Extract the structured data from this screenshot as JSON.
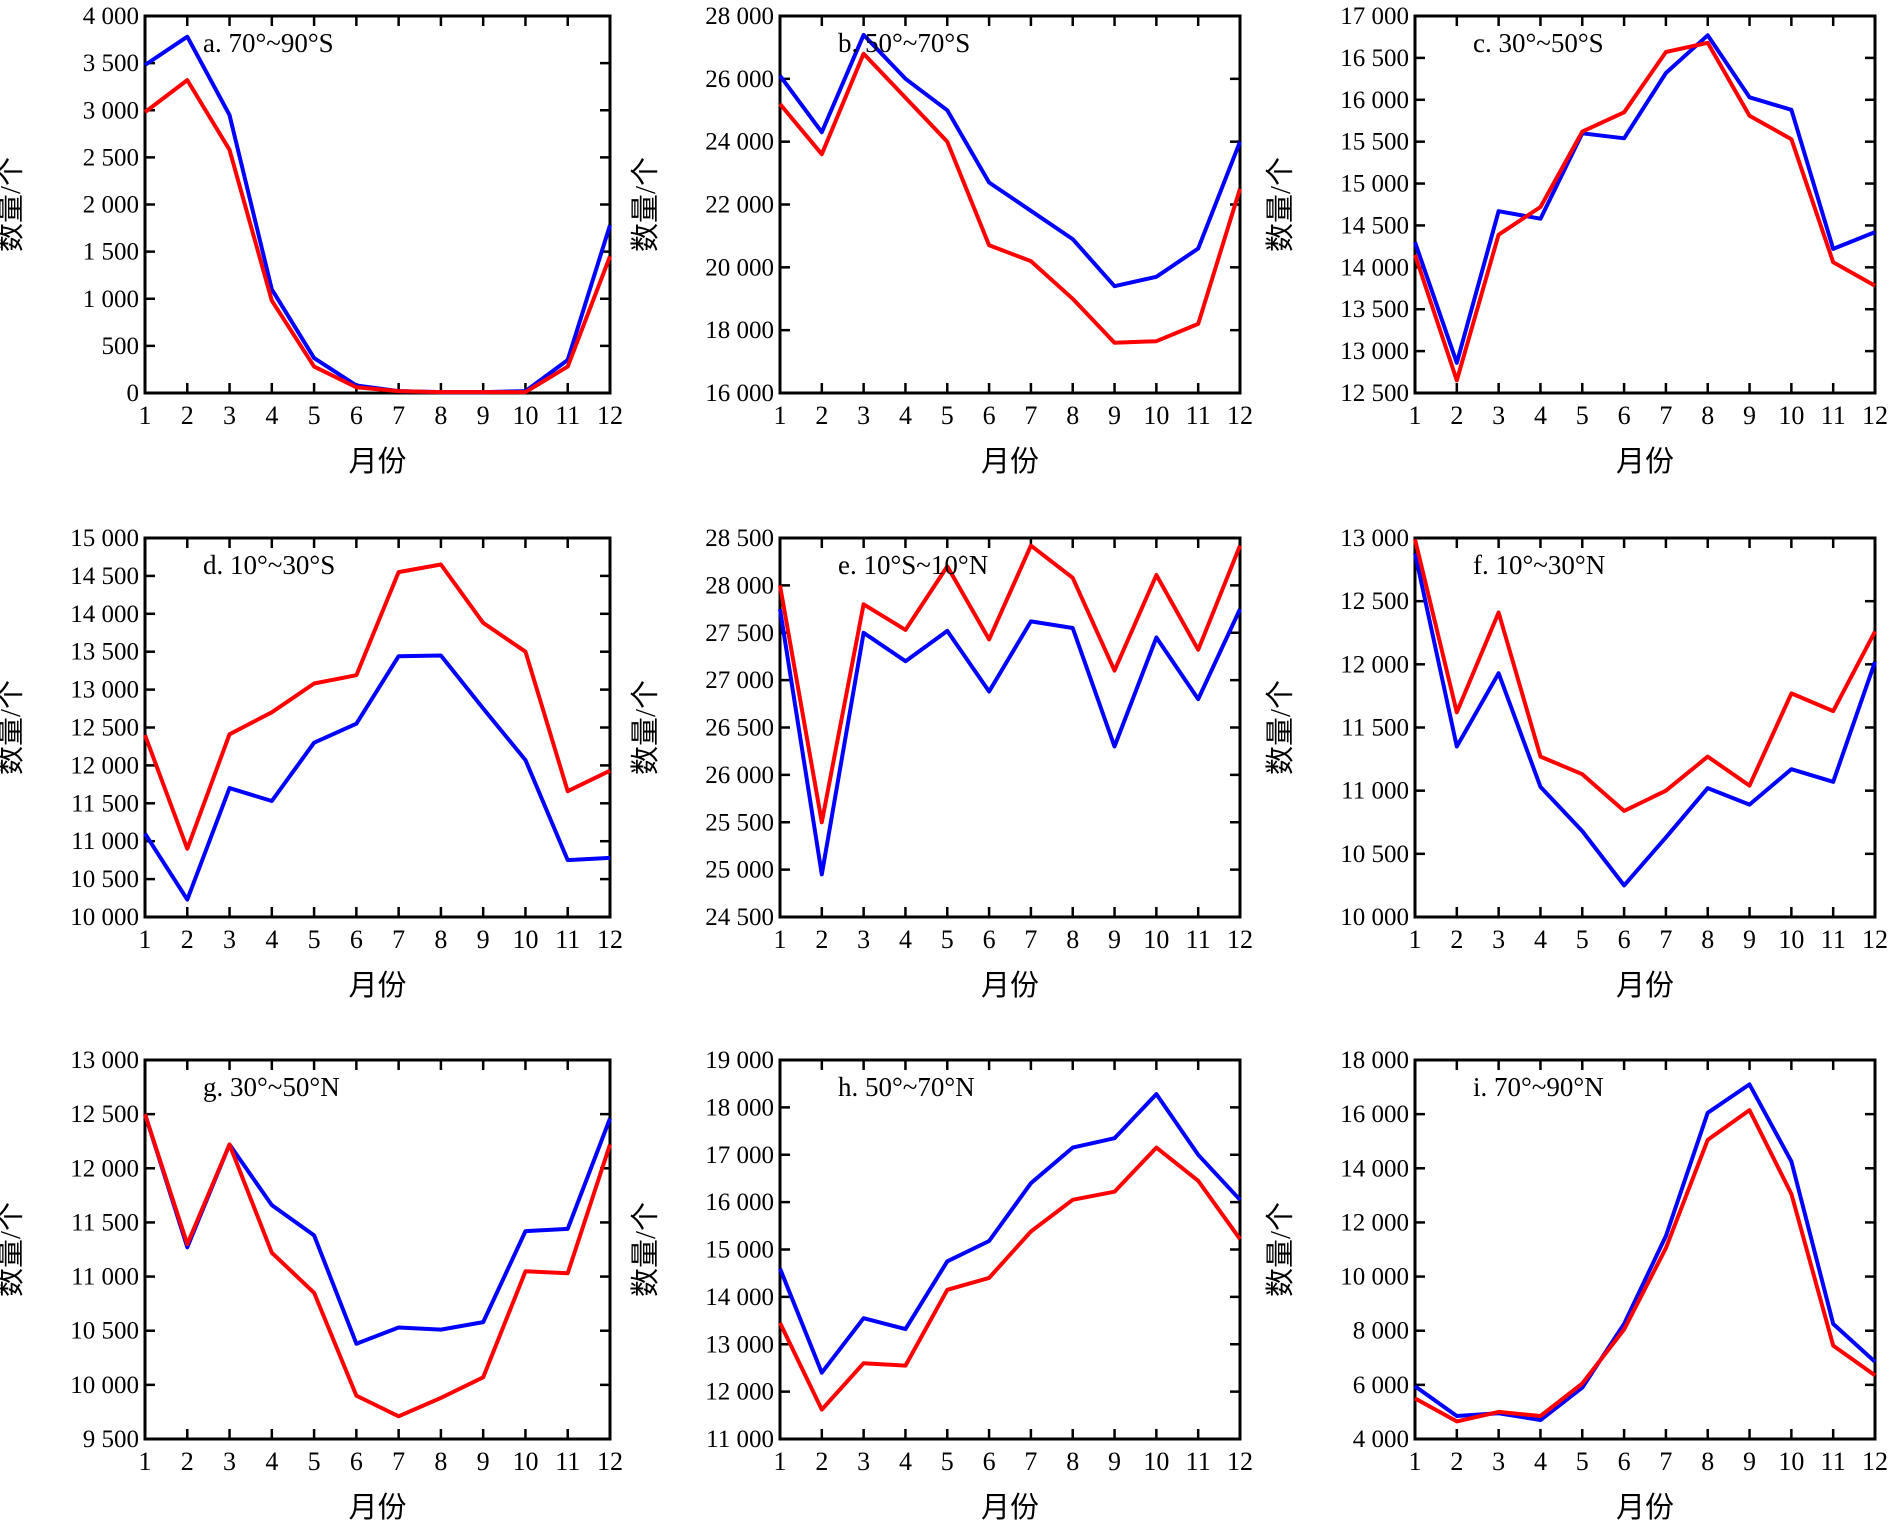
{
  "colors": {
    "series_blue": "#0000ff",
    "series_red": "#ff0000",
    "axis": "#000000"
  },
  "chart_data": [
    {
      "type": "line",
      "title": "a. 70°~90°S",
      "xlabel": "月份",
      "ylabel": "数量/个",
      "x": [
        1,
        2,
        3,
        4,
        5,
        6,
        7,
        8,
        9,
        10,
        11,
        12
      ],
      "xticks": [
        "1",
        "2",
        "3",
        "4",
        "5",
        "6",
        "7",
        "8",
        "9",
        "10",
        "11",
        "12"
      ],
      "ylim": [
        0,
        4000
      ],
      "yticks": [
        "0",
        "500",
        "1 000",
        "1 500",
        "2 000",
        "2 500",
        "3 000",
        "3 500",
        "4 000"
      ],
      "series": [
        {
          "color": "#0000ff",
          "values": [
            3480,
            3780,
            2950,
            1100,
            370,
            80,
            20,
            10,
            10,
            20,
            350,
            1780
          ]
        },
        {
          "color": "#ff0000",
          "values": [
            2980,
            3320,
            2580,
            980,
            280,
            60,
            20,
            10,
            10,
            10,
            280,
            1450
          ]
        }
      ]
    },
    {
      "type": "line",
      "title": "b. 50°~70°S",
      "xlabel": "月份",
      "ylabel": "数量/个",
      "x": [
        1,
        2,
        3,
        4,
        5,
        6,
        7,
        8,
        9,
        10,
        11,
        12
      ],
      "xticks": [
        "1",
        "2",
        "3",
        "4",
        "5",
        "6",
        "7",
        "8",
        "9",
        "10",
        "11",
        "12"
      ],
      "ylim": [
        16000,
        28000
      ],
      "yticks": [
        "16 000",
        "18 000",
        "20 000",
        "22 000",
        "24 000",
        "26 000",
        "28 000"
      ],
      "series": [
        {
          "color": "#0000ff",
          "values": [
            26100,
            24300,
            27400,
            26000,
            25000,
            22700,
            21800,
            20900,
            19400,
            19700,
            20600,
            24000
          ]
        },
        {
          "color": "#ff0000",
          "values": [
            25200,
            23600,
            26800,
            25400,
            24000,
            20700,
            20200,
            19000,
            17600,
            17650,
            18200,
            22500
          ]
        }
      ]
    },
    {
      "type": "line",
      "title": "c. 30°~50°S",
      "xlabel": "月份",
      "ylabel": "数量/个",
      "x": [
        1,
        2,
        3,
        4,
        5,
        6,
        7,
        8,
        9,
        10,
        11,
        12
      ],
      "xticks": [
        "1",
        "2",
        "3",
        "4",
        "5",
        "6",
        "7",
        "8",
        "9",
        "10",
        "11",
        "12"
      ],
      "ylim": [
        12500,
        17000
      ],
      "yticks": [
        "12 500",
        "13 000",
        "13 500",
        "14 000",
        "14 500",
        "15 000",
        "15 500",
        "16 000",
        "16 500",
        "17 000"
      ],
      "series": [
        {
          "color": "#0000ff",
          "values": [
            14300,
            12860,
            14670,
            14580,
            15600,
            15540,
            16320,
            16770,
            16030,
            15880,
            14220,
            14420
          ]
        },
        {
          "color": "#ff0000",
          "values": [
            14150,
            12650,
            14390,
            14720,
            15620,
            15850,
            16570,
            16680,
            15810,
            15530,
            14060,
            13780
          ]
        }
      ]
    },
    {
      "type": "line",
      "title": "d. 10°~30°S",
      "xlabel": "月份",
      "ylabel": "数量/个",
      "x": [
        1,
        2,
        3,
        4,
        5,
        6,
        7,
        8,
        9,
        10,
        11,
        12
      ],
      "xticks": [
        "1",
        "2",
        "3",
        "4",
        "5",
        "6",
        "7",
        "8",
        "9",
        "10",
        "11",
        "12"
      ],
      "ylim": [
        10000,
        15000
      ],
      "yticks": [
        "10 000",
        "10 500",
        "11 000",
        "11 500",
        "12 000",
        "12 500",
        "13 000",
        "13 500",
        "14 000",
        "14 500",
        "15 000"
      ],
      "series": [
        {
          "color": "#0000ff",
          "values": [
            11100,
            10230,
            11700,
            11530,
            12300,
            12550,
            13440,
            13450,
            12750,
            12070,
            10750,
            10780
          ]
        },
        {
          "color": "#ff0000",
          "values": [
            12400,
            10900,
            12410,
            12700,
            13080,
            13190,
            14550,
            14650,
            13880,
            13500,
            11660,
            11930
          ]
        }
      ]
    },
    {
      "type": "line",
      "title": "e. 10°S~10°N",
      "xlabel": "月份",
      "ylabel": "数量/个",
      "x": [
        1,
        2,
        3,
        4,
        5,
        6,
        7,
        8,
        9,
        10,
        11,
        12
      ],
      "xticks": [
        "1",
        "2",
        "3",
        "4",
        "5",
        "6",
        "7",
        "8",
        "9",
        "10",
        "11",
        "12"
      ],
      "ylim": [
        24500,
        28500
      ],
      "yticks": [
        "24 500",
        "25 000",
        "25 500",
        "26 000",
        "26 500",
        "27 000",
        "27 500",
        "28 000",
        "28 500"
      ],
      "series": [
        {
          "color": "#0000ff",
          "values": [
            27750,
            24950,
            27500,
            27200,
            27520,
            26880,
            27620,
            27550,
            26300,
            27450,
            26800,
            27750
          ]
        },
        {
          "color": "#ff0000",
          "values": [
            28000,
            25500,
            27800,
            27530,
            28200,
            27430,
            28420,
            28080,
            27100,
            28110,
            27320,
            28420
          ]
        }
      ]
    },
    {
      "type": "line",
      "title": "f. 10°~30°N",
      "xlabel": "月份",
      "ylabel": "数量/个",
      "x": [
        1,
        2,
        3,
        4,
        5,
        6,
        7,
        8,
        9,
        10,
        11,
        12
      ],
      "xticks": [
        "1",
        "2",
        "3",
        "4",
        "5",
        "6",
        "7",
        "8",
        "9",
        "10",
        "11",
        "12"
      ],
      "ylim": [
        10000,
        13000
      ],
      "yticks": [
        "10 000",
        "10 500",
        "11 000",
        "11 500",
        "12 000",
        "12 500",
        "13 000"
      ],
      "series": [
        {
          "color": "#0000ff",
          "values": [
            12880,
            11350,
            11930,
            11030,
            10680,
            10250,
            10630,
            11020,
            10890,
            11170,
            11070,
            12020
          ]
        },
        {
          "color": "#ff0000",
          "values": [
            12990,
            11620,
            12410,
            11270,
            11130,
            10840,
            11000,
            11270,
            11040,
            11770,
            11630,
            12260
          ]
        }
      ]
    },
    {
      "type": "line",
      "title": "g. 30°~50°N",
      "xlabel": "月份",
      "ylabel": "数量/个",
      "x": [
        1,
        2,
        3,
        4,
        5,
        6,
        7,
        8,
        9,
        10,
        11,
        12
      ],
      "xticks": [
        "1",
        "2",
        "3",
        "4",
        "5",
        "6",
        "7",
        "8",
        "9",
        "10",
        "11",
        "12"
      ],
      "ylim": [
        9500,
        13000
      ],
      "yticks": [
        "9 500",
        "10 000",
        "10 500",
        "11 000",
        "11 500",
        "12 000",
        "12 500",
        "13 000"
      ],
      "series": [
        {
          "color": "#0000ff",
          "values": [
            12500,
            11270,
            12220,
            11660,
            11380,
            10380,
            10530,
            10510,
            10580,
            11420,
            11440,
            12460
          ]
        },
        {
          "color": "#ff0000",
          "values": [
            12500,
            11300,
            12220,
            11220,
            10850,
            9900,
            9710,
            9880,
            10070,
            11050,
            11030,
            12220
          ]
        }
      ]
    },
    {
      "type": "line",
      "title": "h. 50°~70°N",
      "xlabel": "月份",
      "ylabel": "数量/个",
      "x": [
        1,
        2,
        3,
        4,
        5,
        6,
        7,
        8,
        9,
        10,
        11,
        12
      ],
      "xticks": [
        "1",
        "2",
        "3",
        "4",
        "5",
        "6",
        "7",
        "8",
        "9",
        "10",
        "11",
        "12"
      ],
      "ylim": [
        11000,
        19000
      ],
      "yticks": [
        "11 000",
        "12 000",
        "13 000",
        "14 000",
        "15 000",
        "16 000",
        "17 000",
        "18 000",
        "19 000"
      ],
      "series": [
        {
          "color": "#0000ff",
          "values": [
            14600,
            12400,
            13550,
            13320,
            14750,
            15180,
            16400,
            17150,
            17350,
            18280,
            17000,
            16050
          ]
        },
        {
          "color": "#ff0000",
          "values": [
            13450,
            11620,
            12600,
            12550,
            14150,
            14400,
            15380,
            16050,
            16220,
            17150,
            16450,
            15220
          ]
        }
      ]
    },
    {
      "type": "line",
      "title": "i. 70°~90°N",
      "xlabel": "月份",
      "ylabel": "数量/个",
      "x": [
        1,
        2,
        3,
        4,
        5,
        6,
        7,
        8,
        9,
        10,
        11,
        12
      ],
      "xticks": [
        "1",
        "2",
        "3",
        "4",
        "5",
        "6",
        "7",
        "8",
        "9",
        "10",
        "11",
        "12"
      ],
      "ylim": [
        4000,
        18000
      ],
      "yticks": [
        "4 000",
        "6 000",
        "8 000",
        "10 000",
        "12 000",
        "14 000",
        "16 000",
        "18 000"
      ],
      "series": [
        {
          "color": "#0000ff",
          "values": [
            5950,
            4850,
            4950,
            4700,
            5900,
            8250,
            11500,
            16050,
            17100,
            14250,
            8250,
            6850
          ]
        },
        {
          "color": "#ff0000",
          "values": [
            5500,
            4650,
            5000,
            4850,
            6050,
            8050,
            11050,
            15050,
            16150,
            13050,
            7450,
            6350
          ]
        }
      ]
    }
  ]
}
